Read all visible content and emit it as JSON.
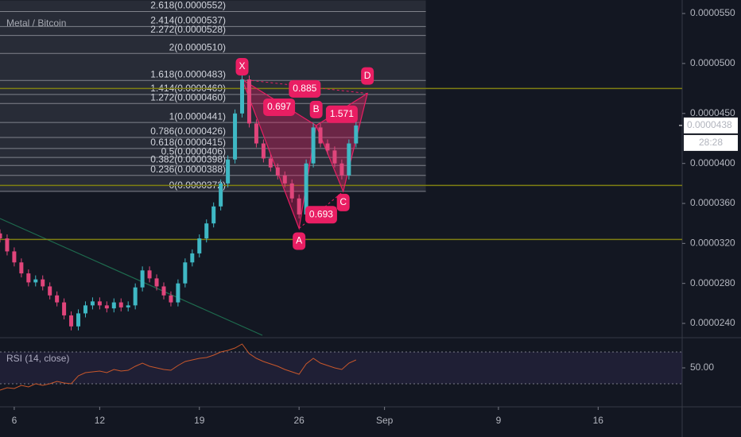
{
  "chart_data": {
    "type": "candlestick",
    "title": "Metal / Bitcoin",
    "x": [
      5,
      5.5,
      6,
      6.5,
      7,
      7.5,
      8,
      8.5,
      9,
      9.5,
      10,
      10.5,
      11,
      11.5,
      12,
      12.5,
      13,
      13.5,
      14,
      14.5,
      15,
      15.5,
      16,
      16.5,
      17,
      17.5,
      18,
      18.5,
      19,
      19.5,
      20,
      20.5,
      21,
      21.5,
      22,
      22.5,
      23,
      23.5,
      24,
      24.5,
      25,
      25.5,
      26,
      26.5,
      27,
      27.5,
      28,
      28.5,
      29,
      29.5,
      30
    ],
    "open": [
      3.3e-05,
      3.25e-05,
      3.12e-05,
      3.01e-05,
      2.9e-05,
      2.81e-05,
      2.84e-05,
      2.77e-05,
      2.68e-05,
      2.61e-05,
      2.48e-05,
      2.37e-05,
      2.5e-05,
      2.58e-05,
      2.62e-05,
      2.58e-05,
      2.55e-05,
      2.61e-05,
      2.56e-05,
      2.58e-05,
      2.76e-05,
      2.93e-05,
      2.85e-05,
      2.77e-05,
      2.68e-05,
      2.61e-05,
      2.8e-05,
      3.01e-05,
      3.1e-05,
      3.25e-05,
      3.4e-05,
      3.57e-05,
      3.8e-05,
      4.04e-05,
      4.5e-05,
      4.84e-05,
      4.4e-05,
      4.2e-05,
      4.05e-05,
      3.96e-05,
      3.88e-05,
      3.8e-05,
      3.65e-05,
      3.49e-05,
      4e-05,
      4.36e-05,
      4.2e-05,
      4.13e-05,
      4e-05,
      3.88e-05,
      4.2e-05
    ],
    "high": [
      3.34e-05,
      3.29e-05,
      3.16e-05,
      3.05e-05,
      2.94e-05,
      2.88e-05,
      2.88e-05,
      2.81e-05,
      2.72e-05,
      2.65e-05,
      2.52e-05,
      2.54e-05,
      2.62e-05,
      2.66e-05,
      2.66e-05,
      2.62e-05,
      2.65e-05,
      2.65e-05,
      2.62e-05,
      2.8e-05,
      2.97e-05,
      2.97e-05,
      2.89e-05,
      2.81e-05,
      2.72e-05,
      2.84e-05,
      3.05e-05,
      3.14e-05,
      3.29e-05,
      3.44e-05,
      3.61e-05,
      3.84e-05,
      4.08e-05,
      4.54e-05,
      4.88e-05,
      4.88e-05,
      4.44e-05,
      4.24e-05,
      4.09e-05,
      4e-05,
      3.92e-05,
      3.84e-05,
      3.69e-05,
      4.04e-05,
      4.4e-05,
      4.4e-05,
      4.24e-05,
      4.17e-05,
      4.04e-05,
      4.24e-05,
      4.42e-05
    ],
    "low": [
      3.21e-05,
      3.08e-05,
      2.97e-05,
      2.86e-05,
      2.77e-05,
      2.77e-05,
      2.73e-05,
      2.64e-05,
      2.57e-05,
      2.44e-05,
      2.33e-05,
      2.33e-05,
      2.46e-05,
      2.54e-05,
      2.54e-05,
      2.51e-05,
      2.51e-05,
      2.52e-05,
      2.52e-05,
      2.54e-05,
      2.72e-05,
      2.81e-05,
      2.73e-05,
      2.64e-05,
      2.57e-05,
      2.57e-05,
      2.76e-05,
      2.97e-05,
      3.06e-05,
      3.21e-05,
      3.36e-05,
      3.53e-05,
      3.76e-05,
      4e-05,
      4.46e-05,
      4.36e-05,
      4.16e-05,
      4.01e-05,
      3.92e-05,
      3.84e-05,
      3.76e-05,
      3.61e-05,
      3.45e-05,
      3.45e-05,
      3.96e-05,
      4.16e-05,
      4.09e-05,
      3.96e-05,
      3.84e-05,
      3.84e-05,
      4.16e-05
    ],
    "close": [
      3.25e-05,
      3.12e-05,
      3.01e-05,
      2.9e-05,
      2.81e-05,
      2.84e-05,
      2.77e-05,
      2.68e-05,
      2.61e-05,
      2.48e-05,
      2.37e-05,
      2.5e-05,
      2.58e-05,
      2.62e-05,
      2.58e-05,
      2.55e-05,
      2.61e-05,
      2.56e-05,
      2.58e-05,
      2.76e-05,
      2.93e-05,
      2.85e-05,
      2.77e-05,
      2.68e-05,
      2.61e-05,
      2.8e-05,
      3.01e-05,
      3.1e-05,
      3.25e-05,
      3.4e-05,
      3.57e-05,
      3.8e-05,
      4.04e-05,
      4.5e-05,
      4.84e-05,
      4.4e-05,
      4.2e-05,
      4.05e-05,
      3.96e-05,
      3.88e-05,
      3.8e-05,
      3.65e-05,
      3.49e-05,
      4e-05,
      4.36e-05,
      4.2e-05,
      4.13e-05,
      4e-05,
      3.88e-05,
      4.2e-05,
      4.38e-05
    ],
    "up_color": "#3fb8c4",
    "down_color": "#e0457b",
    "xlim": [
      5,
      52.9
    ],
    "xticks": [
      6,
      12,
      19,
      26,
      {
        "value": 32,
        "label": "Sep"
      },
      {
        "value": 40,
        "label": "9"
      },
      {
        "value": 47,
        "label": "16"
      }
    ],
    "ylim": [
      2.257e-05,
      5.635e-05
    ],
    "yticks": [
      {
        "value": 5.5e-05,
        "label": "0.0000550"
      },
      {
        "value": 5e-05,
        "label": "0.0000500"
      },
      {
        "value": 4.5e-05,
        "label": "0.0000450"
      },
      {
        "value": 4e-05,
        "label": "0.0000400"
      },
      {
        "value": 3.6e-05,
        "label": "0.0000360"
      },
      {
        "value": 3.2e-05,
        "label": "0.0000320"
      },
      {
        "value": 2.8e-05,
        "label": "0.0000280"
      },
      {
        "value": 2.4e-05,
        "label": "0.0000240"
      }
    ],
    "last_price": {
      "value": 4.38e-05,
      "label": "0.0000438"
    },
    "countdown": "28:28",
    "fib_levels": [
      {
        "value": 5.52e-05,
        "label": "2.618(0.0000552)"
      },
      {
        "value": 5.37e-05,
        "label": "2.414(0.0000537)"
      },
      {
        "value": 5.28e-05,
        "label": "2.272(0.0000528)"
      },
      {
        "value": 5.1e-05,
        "label": "2(0.0000510)"
      },
      {
        "value": 4.83e-05,
        "label": "1.618(0.0000483)"
      },
      {
        "value": 4.69e-05,
        "label": "1.414(0.0000469)"
      },
      {
        "value": 4.6e-05,
        "label": "1.272(0.0000460)"
      },
      {
        "value": 4.41e-05,
        "label": "1(0.0000441)"
      },
      {
        "value": 4.26e-05,
        "label": "0.786(0.0000426)"
      },
      {
        "value": 4.15e-05,
        "label": "0.618(0.0000415)"
      },
      {
        "value": 4.06e-05,
        "label": "0.5(0.0000406)"
      },
      {
        "value": 3.98e-05,
        "label": "0.382(0.0000398)"
      },
      {
        "value": 3.88e-05,
        "label": "0.236(0.0000388)"
      },
      {
        "value": 3.72e-05,
        "label": "0(0.0000372)"
      }
    ],
    "fib_x": [
      5,
      34.9
    ],
    "levels": [
      4.75e-05,
      3.78e-05,
      3.24e-05
    ],
    "pattern": [
      {
        "label": "X",
        "x": 22,
        "value": 4.84e-05
      },
      {
        "label": "A",
        "x": 26,
        "value": 3.35e-05
      },
      {
        "label": "B",
        "x": 27.2,
        "value": 4.38e-05
      },
      {
        "label": "C",
        "x": 29.1,
        "value": 3.72e-05
      },
      {
        "label": "D",
        "x": 30.8,
        "value": 4.7e-05
      }
    ],
    "ratios": [
      "0.697",
      "0.885",
      "1.571",
      "0.693"
    ],
    "rsi": {
      "title": "RSI (14, close)",
      "values": [
        22,
        25,
        24,
        28,
        26,
        30,
        28,
        30,
        33,
        31,
        30,
        40,
        44,
        45,
        46,
        44,
        48,
        46,
        47,
        52,
        56,
        52,
        50,
        48,
        47,
        53,
        58,
        60,
        62,
        63,
        66,
        70,
        72,
        75,
        80,
        68,
        62,
        58,
        55,
        52,
        48,
        45,
        42,
        55,
        62,
        56,
        53,
        50,
        48,
        56,
        60
      ],
      "ylim": [
        3,
        88
      ],
      "yticks": [
        {
          "value": 50,
          "label": "50.00"
        }
      ],
      "bands": [
        30,
        70
      ],
      "color": "#c8572b"
    }
  }
}
